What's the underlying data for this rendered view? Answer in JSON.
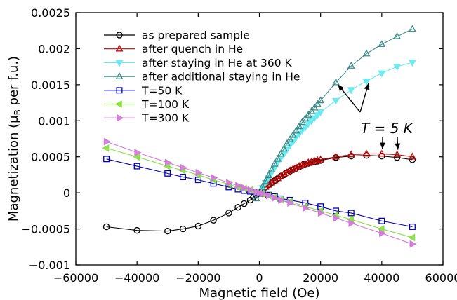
{
  "chart_data": {
    "type": "line",
    "xlabel": "Magnetic field (Oe)",
    "ylabel_main": "Magnetization (μ",
    "ylabel_sub": "B",
    "ylabel_tail": " per f.u.)",
    "xlim": [
      -60000,
      60000
    ],
    "ylim": [
      -0.001,
      0.0025
    ],
    "xticks": [
      -60000,
      -40000,
      -20000,
      0,
      20000,
      40000,
      60000
    ],
    "xtick_labels": [
      "−60000",
      "−40000",
      "−20000",
      "0",
      "20000",
      "40000",
      "60000"
    ],
    "yticks": [
      -0.001,
      -0.0005,
      0,
      0.0005,
      0.001,
      0.0015,
      0.002,
      0.0025
    ],
    "ytick_labels": [
      "−0.001",
      "−0.0005",
      "0",
      "0.0005",
      "0.001",
      "0.0015",
      "0.002",
      "0.0025"
    ],
    "grid": false,
    "legend_position": "top-left",
    "annotation": "T = 5 K",
    "series": [
      {
        "name": "as prepared sample",
        "color": "#000000",
        "marker": "circle",
        "x": [
          -50000,
          -40000,
          -30000,
          -25000,
          -20000,
          -15000,
          -10000,
          -7000,
          -5000,
          -3000,
          -2000,
          -1000,
          0,
          1000,
          2000,
          3000,
          4000,
          5000,
          6000,
          7000,
          8000,
          9000,
          10000,
          11000,
          12000,
          13000,
          14000,
          15000,
          16000,
          17000,
          18000,
          19000,
          20000,
          25000,
          30000,
          35000,
          40000,
          45000,
          50000
        ],
        "y": [
          -0.00047,
          -0.00052,
          -0.00053,
          -0.0005,
          -0.00046,
          -0.00038,
          -0.00028,
          -0.0002,
          -0.00015,
          -0.0001,
          -6e-05,
          -3e-05,
          0,
          4e-05,
          8e-05,
          0.00011,
          0.00014,
          0.00017,
          0.0002,
          0.00023,
          0.00025,
          0.00028,
          0.0003,
          0.00032,
          0.00034,
          0.00036,
          0.00038,
          0.0004,
          0.00041,
          0.00042,
          0.00043,
          0.00044,
          0.00045,
          0.00049,
          0.00051,
          0.00052,
          0.00051,
          0.00049,
          0.00046
        ]
      },
      {
        "name": "after quench in He",
        "color": "#cc0000",
        "marker": "triangle-up",
        "x": [
          0,
          1000,
          2000,
          3000,
          4000,
          5000,
          6000,
          7000,
          8000,
          9000,
          10000,
          11000,
          12000,
          13000,
          14000,
          15000,
          16000,
          17000,
          18000,
          19000,
          20000,
          25000,
          30000,
          35000,
          40000,
          45000,
          50000
        ],
        "y": [
          0,
          4e-05,
          8e-05,
          0.00011,
          0.00014,
          0.00017,
          0.0002,
          0.00023,
          0.00026,
          0.00028,
          0.00031,
          0.00033,
          0.00035,
          0.00037,
          0.00039,
          0.0004,
          0.00042,
          0.00043,
          0.00044,
          0.00045,
          0.00046,
          0.0005,
          0.00053,
          0.00054,
          0.00054,
          0.00053,
          0.0005
        ]
      },
      {
        "name": "after staying in He at 360 K",
        "color": "#66e8f0",
        "marker": "triangle-down",
        "x": [
          0,
          1000,
          2000,
          3000,
          4000,
          5000,
          6000,
          7000,
          8000,
          9000,
          10000,
          11000,
          12000,
          13000,
          14000,
          15000,
          16000,
          17000,
          18000,
          19000,
          20000,
          25000,
          30000,
          35000,
          40000,
          45000,
          50000
        ],
        "y": [
          0,
          7e-05,
          0.00014,
          0.00021,
          0.00028,
          0.00035,
          0.00042,
          0.00048,
          0.00054,
          0.0006,
          0.00066,
          0.00071,
          0.00077,
          0.00082,
          0.00087,
          0.00091,
          0.00096,
          0.001,
          0.00104,
          0.00108,
          0.00112,
          0.00128,
          0.00143,
          0.00155,
          0.00166,
          0.00175,
          0.00181
        ]
      },
      {
        "name": "after additional staying in He",
        "color": "#3d8b87",
        "marker": "triangle-up",
        "x": [
          -1000,
          0,
          1000,
          2000,
          3000,
          4000,
          5000,
          6000,
          7000,
          8000,
          9000,
          10000,
          11000,
          12000,
          13000,
          14000,
          15000,
          16000,
          17000,
          18000,
          19000,
          20000,
          25000,
          30000,
          35000,
          40000,
          45000,
          50000
        ],
        "y": [
          -8e-05,
          0,
          8e-05,
          0.00016,
          0.00024,
          0.00032,
          0.0004,
          0.00047,
          0.00054,
          0.00061,
          0.00068,
          0.00074,
          0.0008,
          0.00086,
          0.00092,
          0.00098,
          0.00103,
          0.00108,
          0.00113,
          0.00118,
          0.00123,
          0.00128,
          0.00153,
          0.00176,
          0.00193,
          0.00206,
          0.00217,
          0.00227
        ]
      },
      {
        "name": "T=50 K",
        "color": "#0000bb",
        "marker": "square",
        "x": [
          -50000,
          -40000,
          -30000,
          -25000,
          -20000,
          -15000,
          -10000,
          -7000,
          -5000,
          -3000,
          -1000,
          0,
          1000,
          3000,
          5000,
          7000,
          10000,
          15000,
          20000,
          25000,
          30000,
          40000,
          50000
        ],
        "y": [
          0.00047,
          0.00037,
          0.00027,
          0.00022,
          0.00018,
          0.00013,
          8e-05,
          5e-05,
          3e-05,
          2e-05,
          1e-05,
          0,
          -1e-05,
          -3e-05,
          -5e-05,
          -8e-05,
          -0.0001,
          -0.00014,
          -0.00019,
          -0.00025,
          -0.00028,
          -0.00039,
          -0.00047
        ]
      },
      {
        "name": "T=100 K",
        "color": "#88e044",
        "marker": "triangle-left",
        "x": [
          -50000,
          -40000,
          -30000,
          -25000,
          -20000,
          -15000,
          -10000,
          -7000,
          -5000,
          -3000,
          -1000,
          0,
          1000,
          3000,
          5000,
          7000,
          10000,
          15000,
          20000,
          25000,
          30000,
          40000,
          50000
        ],
        "y": [
          0.00062,
          0.0005,
          0.00037,
          0.00031,
          0.00025,
          0.00018,
          0.00012,
          8e-05,
          6e-05,
          4e-05,
          1e-05,
          0,
          -1e-05,
          -4e-05,
          -6e-05,
          -9e-05,
          -0.00012,
          -0.00019,
          -0.00025,
          -0.00031,
          -0.00037,
          -0.0005,
          -0.00062
        ]
      },
      {
        "name": "T=300 K",
        "color": "#d27ad9",
        "marker": "triangle-right",
        "x": [
          -50000,
          -40000,
          -30000,
          -25000,
          -20000,
          -15000,
          -10000,
          -7000,
          -5000,
          -3000,
          -1000,
          0,
          1000,
          3000,
          5000,
          7000,
          10000,
          15000,
          20000,
          25000,
          30000,
          40000,
          50000
        ],
        "y": [
          0.00071,
          0.00056,
          0.00042,
          0.00035,
          0.00028,
          0.00021,
          0.00014,
          0.0001,
          7e-05,
          4e-05,
          1e-05,
          0,
          -1e-05,
          -4e-05,
          -7e-05,
          -0.0001,
          -0.00014,
          -0.00021,
          -0.00028,
          -0.00035,
          -0.00042,
          -0.00056,
          -0.00071
        ]
      }
    ]
  }
}
